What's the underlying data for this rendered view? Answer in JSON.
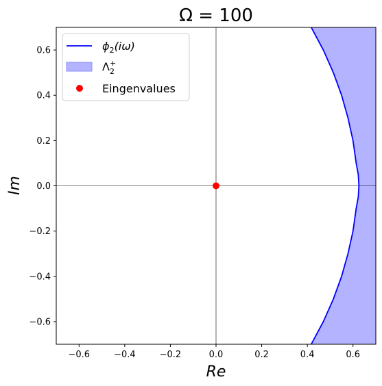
{
  "chart_data": {
    "type": "line",
    "title": "Ω = 100",
    "xlabel": "Re",
    "ylabel": "Im",
    "xlim": [
      -0.7,
      0.7
    ],
    "ylim": [
      -0.7,
      0.7
    ],
    "xticks": [
      -0.6,
      -0.4,
      -0.2,
      0.0,
      0.2,
      0.4,
      0.6
    ],
    "yticks": [
      -0.6,
      -0.4,
      -0.2,
      0.0,
      0.2,
      0.4,
      0.6
    ],
    "xtick_labels": [
      "−0.6",
      "−0.4",
      "−0.2",
      "0.0",
      "0.2",
      "0.4",
      "0.6"
    ],
    "ytick_labels": [
      "−0.6",
      "−0.4",
      "−0.2",
      "0.0",
      "0.2",
      "0.4",
      "0.6"
    ],
    "grid": false,
    "legend_position": "top-left",
    "series": [
      {
        "name": "ϕ₂(iω)",
        "kind": "line",
        "color": "#0000ff",
        "x": [
          0.417,
          0.47,
          0.514,
          0.55,
          0.578,
          0.6,
          0.614,
          0.623,
          0.626,
          0.623,
          0.614,
          0.6,
          0.578,
          0.55,
          0.514,
          0.47,
          0.417
        ],
        "y": [
          -0.7,
          -0.6,
          -0.5,
          -0.4,
          -0.3,
          -0.2,
          -0.1,
          -0.05,
          0.0,
          0.05,
          0.1,
          0.2,
          0.3,
          0.4,
          0.5,
          0.6,
          0.7
        ]
      },
      {
        "name": "Λ₂⁺",
        "kind": "area",
        "color": "#b3b3ff",
        "description_side": "right of curve"
      },
      {
        "name": "Eingenvalues",
        "kind": "scatter",
        "color": "#ff0000",
        "x": [
          0.0
        ],
        "y": [
          0.0
        ]
      }
    ],
    "legend": {
      "line_label_base": "ϕ",
      "line_label_sub": "2",
      "line_label_rest": "(iω)",
      "area_label_base": "Λ",
      "area_label_sub": "2",
      "area_label_sup": "+",
      "scatter_label": "Eingenvalues"
    }
  }
}
